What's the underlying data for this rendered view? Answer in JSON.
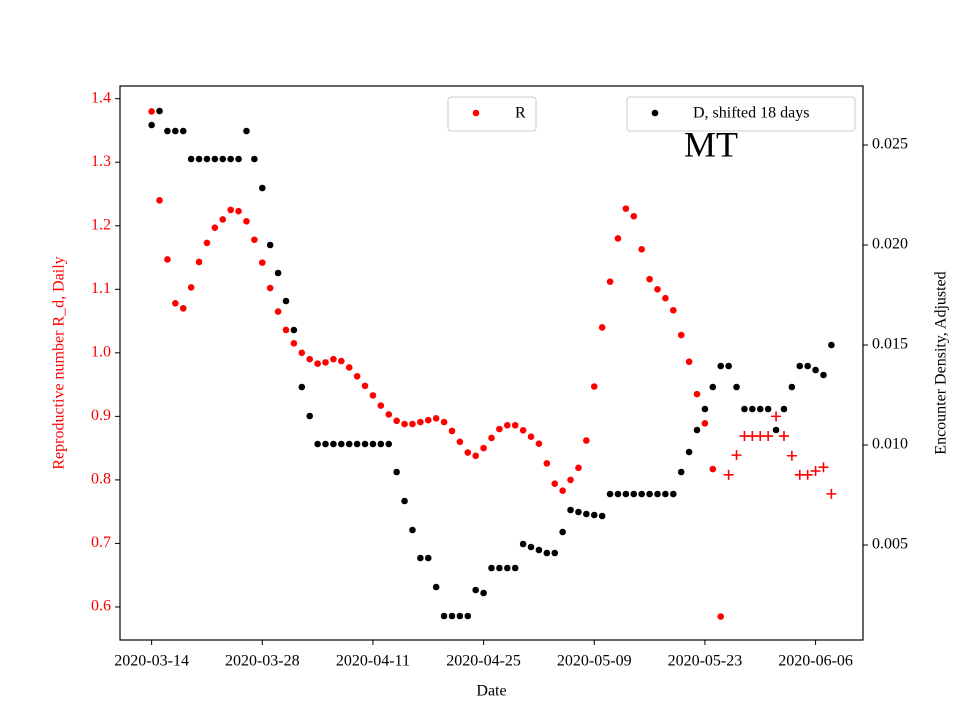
{
  "chart_data": {
    "type": "scatter",
    "title": "MT",
    "x_label": "Date",
    "y_label": "Reproductive number R_d, Daily",
    "y2_label": "Encounter Density, Adjusted",
    "y_label_color": "#ff0000",
    "x": [
      "2020-03-14",
      "2020-03-15",
      "2020-03-16",
      "2020-03-17",
      "2020-03-18",
      "2020-03-19",
      "2020-03-20",
      "2020-03-21",
      "2020-03-22",
      "2020-03-23",
      "2020-03-24",
      "2020-03-25",
      "2020-03-26",
      "2020-03-27",
      "2020-03-28",
      "2020-03-29",
      "2020-03-30",
      "2020-03-31",
      "2020-04-01",
      "2020-04-02",
      "2020-04-03",
      "2020-04-04",
      "2020-04-05",
      "2020-04-06",
      "2020-04-07",
      "2020-04-08",
      "2020-04-09",
      "2020-04-10",
      "2020-04-11",
      "2020-04-12",
      "2020-04-13",
      "2020-04-14",
      "2020-04-15",
      "2020-04-16",
      "2020-04-17",
      "2020-04-18",
      "2020-04-19",
      "2020-04-20",
      "2020-04-21",
      "2020-04-22",
      "2020-04-23",
      "2020-04-24",
      "2020-04-25",
      "2020-04-26",
      "2020-04-27",
      "2020-04-28",
      "2020-04-29",
      "2020-04-30",
      "2020-05-01",
      "2020-05-02",
      "2020-05-03",
      "2020-05-04",
      "2020-05-05",
      "2020-05-06",
      "2020-05-07",
      "2020-05-08",
      "2020-05-09",
      "2020-05-10",
      "2020-05-11",
      "2020-05-12",
      "2020-05-13",
      "2020-05-14",
      "2020-05-15",
      "2020-05-16",
      "2020-05-17",
      "2020-05-18",
      "2020-05-19",
      "2020-05-20",
      "2020-05-21",
      "2020-05-22",
      "2020-05-23",
      "2020-05-24",
      "2020-05-25",
      "2020-05-26",
      "2020-05-27",
      "2020-05-28",
      "2020-05-29",
      "2020-05-30",
      "2020-05-31",
      "2020-06-01",
      "2020-06-02",
      "2020-06-03",
      "2020-06-04",
      "2020-06-05",
      "2020-06-06",
      "2020-06-07",
      "2020-06-08"
    ],
    "series": [
      {
        "name": "R",
        "color": "#ff0000",
        "marker": "dot",
        "values": [
          1.38,
          1.24,
          1.147,
          1.078,
          1.07,
          1.103,
          1.143,
          1.173,
          1.197,
          1.21,
          1.225,
          1.223,
          1.207,
          1.178,
          1.142,
          1.102,
          1.065,
          1.036,
          1.015,
          1.0,
          0.99,
          0.983,
          0.985,
          0.99,
          0.987,
          0.977,
          0.963,
          0.948,
          0.933,
          0.917,
          0.903,
          0.893,
          0.888,
          0.888,
          0.891,
          0.894,
          0.897,
          0.891,
          0.877,
          0.86,
          0.843,
          0.838,
          0.85,
          0.866,
          0.88,
          0.886,
          0.886,
          0.878,
          0.868,
          0.857,
          0.826,
          0.794,
          0.783,
          0.8,
          0.819,
          0.862,
          0.947,
          1.04,
          1.112,
          1.18,
          1.227,
          1.215,
          1.163,
          1.116,
          1.1,
          1.086,
          1.067,
          1.028,
          0.986,
          0.935,
          0.889,
          0.817,
          0.585,
          null,
          null,
          null,
          null,
          null,
          null,
          null,
          null,
          null,
          null,
          null,
          null,
          null,
          null
        ]
      },
      {
        "color": "#ff0000",
        "marker": "plus",
        "values": [
          null,
          null,
          null,
          null,
          null,
          null,
          null,
          null,
          null,
          null,
          null,
          null,
          null,
          null,
          null,
          null,
          null,
          null,
          null,
          null,
          null,
          null,
          null,
          null,
          null,
          null,
          null,
          null,
          null,
          null,
          null,
          null,
          null,
          null,
          null,
          null,
          null,
          null,
          null,
          null,
          null,
          null,
          null,
          null,
          null,
          null,
          null,
          null,
          null,
          null,
          null,
          null,
          null,
          null,
          null,
          null,
          null,
          null,
          null,
          null,
          null,
          null,
          null,
          null,
          null,
          null,
          null,
          null,
          null,
          null,
          null,
          null,
          null,
          0.808,
          0.839,
          0.869,
          0.869,
          0.869,
          0.869,
          0.9,
          0.869,
          0.838,
          0.808,
          0.808,
          0.814,
          0.82,
          0.778
        ]
      },
      {
        "name": "D, shifted 18 days",
        "color": "#000000",
        "marker": "dot",
        "axis": "y2",
        "values": [
          0.026,
          0.0267,
          0.0257,
          0.0257,
          0.0257,
          0.0243,
          0.0243,
          0.0243,
          0.0243,
          0.0243,
          0.0243,
          0.0243,
          0.0257,
          0.0243,
          0.02285,
          0.02,
          0.0186,
          0.0172,
          0.01575,
          0.0129,
          0.01145,
          0.01005,
          0.01005,
          0.01005,
          0.01005,
          0.01005,
          0.01005,
          0.01005,
          0.01005,
          0.01005,
          0.01005,
          0.00865,
          0.0072,
          0.00575,
          0.00435,
          0.00435,
          0.0029,
          0.00145,
          0.00145,
          0.00145,
          0.00145,
          0.00275,
          0.0026,
          0.00385,
          0.00385,
          0.00385,
          0.00385,
          0.00505,
          0.0049,
          0.00475,
          0.0046,
          0.0046,
          0.00565,
          0.00675,
          0.00665,
          0.00655,
          0.0065,
          0.00645,
          0.00755,
          0.00755,
          0.00755,
          0.00755,
          0.00755,
          0.00755,
          0.00755,
          0.00755,
          0.00755,
          0.00865,
          0.00965,
          0.01075,
          0.0118,
          0.0129,
          0.01395,
          0.01395,
          0.0129,
          0.0118,
          0.0118,
          0.0118,
          0.0118,
          0.01075,
          0.0118,
          0.0129,
          0.01395,
          0.01395,
          0.01375,
          0.0135,
          0.015
        ]
      }
    ],
    "xlim": [
      "2020-03-10",
      "2020-06-12"
    ],
    "xticks": [
      "2020-03-14",
      "2020-03-28",
      "2020-04-11",
      "2020-04-25",
      "2020-05-09",
      "2020-05-23",
      "2020-06-06"
    ],
    "ylim": [
      0.548,
      1.42
    ],
    "yticks": [
      0.6,
      0.7,
      0.8,
      0.9,
      {
        "value": 1,
        "label": "1.0"
      },
      1.1,
      1.2,
      1.3,
      1.4
    ],
    "y2lim": [
      0.00025,
      0.02795
    ],
    "y2ticks": [
      0.005,
      {
        "value": 0.01,
        "label": "0.010"
      },
      0.015,
      {
        "value": 0.02,
        "label": "0.020"
      },
      0.025
    ]
  }
}
